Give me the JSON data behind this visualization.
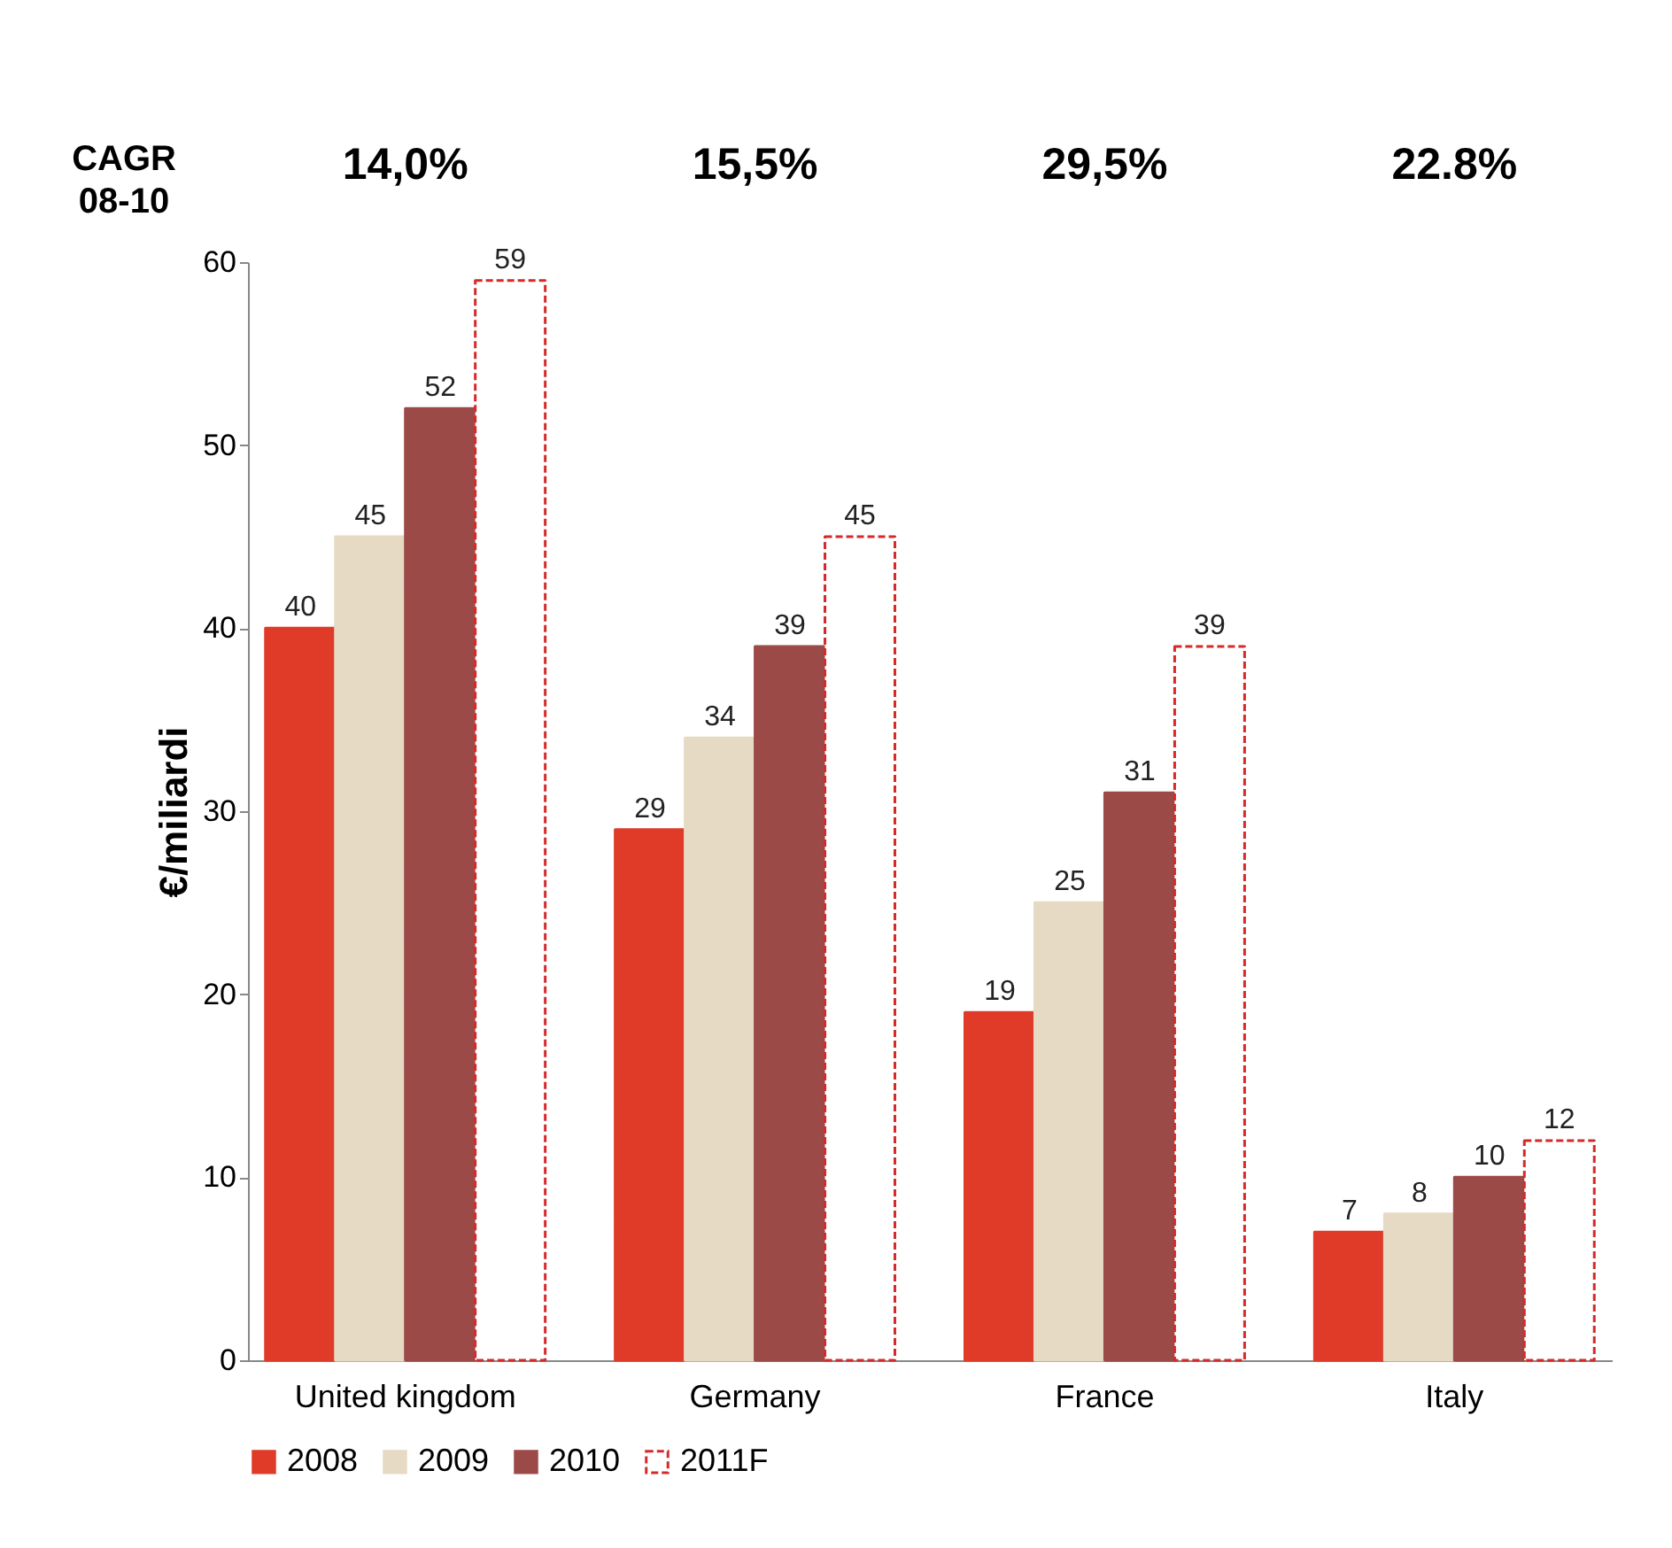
{
  "chart_data": {
    "type": "bar",
    "ylabel": "€/miliardi",
    "categories": [
      "United kingdom",
      "Germany",
      "France",
      "Italy"
    ],
    "series": [
      {
        "name": "2008",
        "color": "#e03a28",
        "values": [
          40,
          29,
          19,
          7
        ]
      },
      {
        "name": "2009",
        "color": "#e6dac4",
        "values": [
          45,
          34,
          25,
          8
        ]
      },
      {
        "name": "2010",
        "color": "#9c4a48",
        "values": [
          52,
          39,
          31,
          10
        ]
      },
      {
        "name": "2011F",
        "color": "#d42a2a",
        "line_style": "dashed",
        "values": [
          59,
          45,
          39,
          12
        ]
      }
    ],
    "ylim": [
      0,
      60
    ],
    "yticks": [
      0,
      10,
      20,
      30,
      40,
      50,
      60
    ],
    "grid": false,
    "legend": "bottom",
    "data_labels": true,
    "annotations": [
      "CAGR 08-10",
      "14,0%",
      "15,5%",
      "29,5%",
      "22.8%"
    ]
  }
}
